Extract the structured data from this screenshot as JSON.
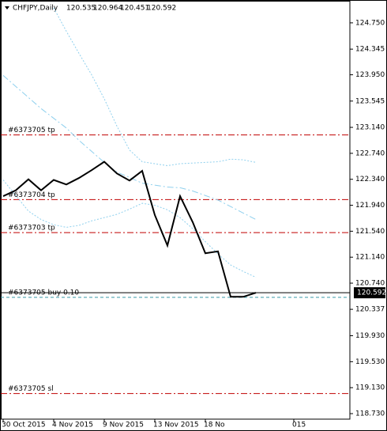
{
  "chart_data": {
    "type": "line",
    "symbol": "CHFJPY,Daily",
    "ohlc": [
      120.535,
      120.964,
      120.451,
      120.592
    ],
    "categories": [
      "30 Oct 2015",
      null,
      null,
      null,
      "4 Nov 2015",
      null,
      null,
      null,
      "9 Nov 2015",
      null,
      null,
      null,
      "13 Nov 2015",
      null,
      null,
      null,
      "18 No",
      null,
      null,
      null,
      null,
      null,
      null,
      "015"
    ],
    "series": [
      {
        "color": "#8fd0ee",
        "style": "dotted",
        "values": [
          null,
          null,
          null,
          null,
          124.98,
          124.62,
          124.28,
          123.95,
          123.58,
          123.16,
          122.79,
          122.61,
          122.58,
          122.55,
          122.58,
          122.59,
          122.6,
          122.61,
          122.65,
          122.64,
          122.6,
          null,
          null,
          null
        ]
      },
      {
        "color": "#8fd0ee",
        "style": "dashdot",
        "values": [
          123.94,
          123.77,
          123.6,
          123.43,
          123.28,
          123.13,
          122.94,
          122.77,
          122.6,
          122.45,
          122.37,
          122.28,
          122.25,
          122.22,
          122.21,
          122.16,
          122.09,
          122.02,
          121.92,
          121.82,
          121.72,
          null,
          null,
          null
        ]
      },
      {
        "color": "#8fd0ee",
        "style": "dotted",
        "values": [
          122.33,
          122.09,
          121.85,
          121.72,
          121.64,
          121.6,
          121.63,
          121.7,
          121.75,
          121.8,
          121.88,
          121.97,
          121.94,
          121.87,
          121.75,
          121.58,
          121.38,
          121.19,
          121.02,
          120.92,
          120.83,
          null,
          null,
          null
        ]
      },
      {
        "color": "#000000",
        "style": "solid",
        "values": [
          122.08,
          122.17,
          122.34,
          122.17,
          122.33,
          122.26,
          122.36,
          122.48,
          122.61,
          122.43,
          122.32,
          122.47,
          121.79,
          121.32,
          122.08,
          121.68,
          121.2,
          121.23,
          120.53,
          120.53,
          120.592,
          null,
          null,
          null
        ]
      }
    ],
    "levels": [
      {
        "label": "#6373705 tp",
        "value": 123.024,
        "color": "#c00000",
        "style": "dashdot"
      },
      {
        "label": "#6373704 tp",
        "value": 122.028,
        "color": "#c00000",
        "style": "dashdot"
      },
      {
        "label": "#6373703 tp",
        "value": 121.518,
        "color": "#c00000",
        "style": "dashdot"
      },
      {
        "label": "#6373705 buy 0.10",
        "value": 120.521,
        "color": "#3a9aa8",
        "style": "dashed"
      },
      {
        "label": "#6373705 sl",
        "value": 119.039,
        "color": "#c00000",
        "style": "dashdot"
      }
    ],
    "ylim": [
      118.645,
      125.102
    ],
    "yticks": [
      {
        "value": 124.75,
        "label": "124.750"
      },
      124.345,
      {
        "value": 123.95,
        "label": "123.950"
      },
      123.545,
      {
        "value": 123.14,
        "label": "123.140"
      },
      {
        "value": 122.74,
        "label": "122.740"
      },
      {
        "value": 122.34,
        "label": "122.340"
      },
      {
        "value": 121.94,
        "label": "121.940"
      },
      {
        "value": 121.54,
        "label": "121.540"
      },
      {
        "value": 121.14,
        "label": "121.140"
      },
      {
        "value": 120.74,
        "label": "120.740"
      },
      120.337,
      {
        "value": 119.93,
        "label": "119.930"
      },
      {
        "value": 119.53,
        "label": "119.530"
      },
      {
        "value": 119.13,
        "label": "119.130"
      },
      {
        "value": 118.73,
        "label": "118.730"
      }
    ],
    "grid": false
  }
}
